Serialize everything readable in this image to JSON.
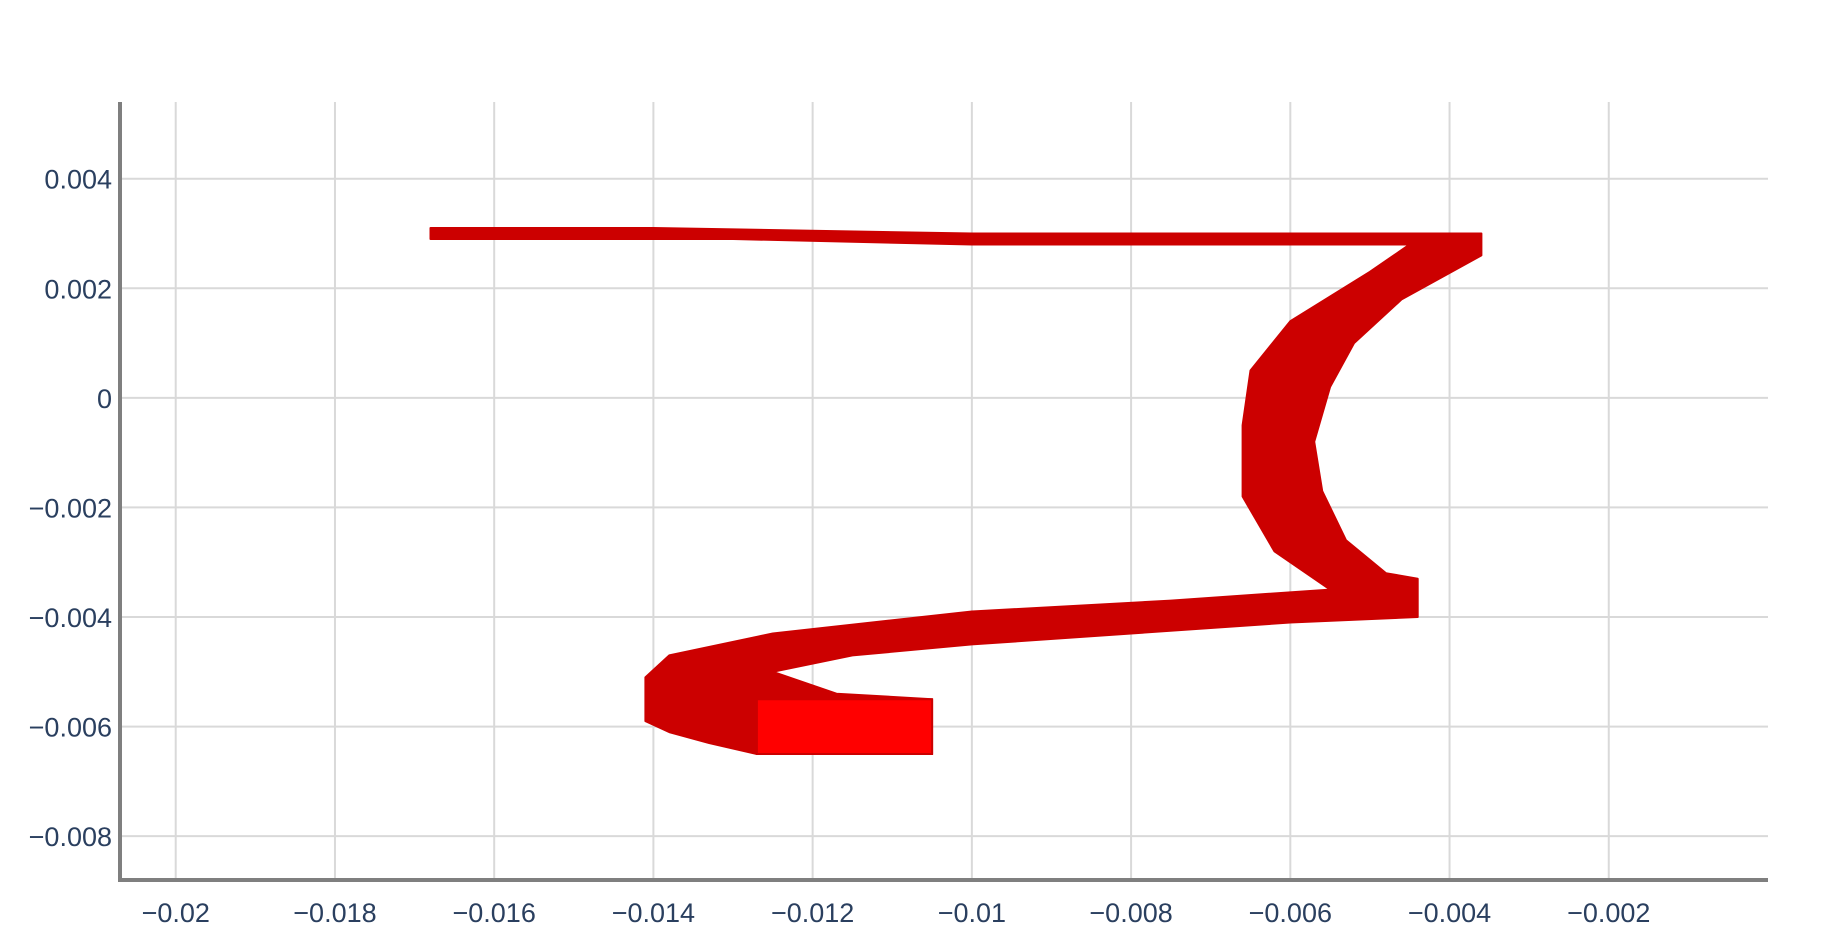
{
  "chart_data": {
    "type": "line",
    "title": "",
    "xlabel": "",
    "ylabel": "",
    "xlim": [
      -0.0207,
      0.0
    ],
    "ylim": [
      -0.0088,
      0.0054
    ],
    "x_ticks": [
      -0.02,
      -0.018,
      -0.016,
      -0.014,
      -0.012,
      -0.01,
      -0.008,
      -0.006,
      -0.004,
      -0.002
    ],
    "x_tick_labels": [
      "−0.02",
      "−0.018",
      "−0.016",
      "−0.014",
      "−0.012",
      "−0.01",
      "−0.008",
      "−0.006",
      "−0.004",
      "−0.002"
    ],
    "y_ticks": [
      0.004,
      0.002,
      0,
      -0.002,
      -0.004,
      -0.006,
      -0.008
    ],
    "y_tick_labels": [
      "0.004",
      "0.002",
      "0",
      "−0.002",
      "−0.004",
      "−0.006",
      "−0.008"
    ],
    "grid": true,
    "legend": "none",
    "series": [
      {
        "color": "#cc0000",
        "highlight_color": "#ff0000",
        "outer_edge": [
          [
            -0.0168,
            0.0031
          ],
          [
            -0.014,
            0.0031
          ],
          [
            -0.01,
            0.003
          ],
          [
            -0.007,
            0.003
          ],
          [
            -0.0052,
            0.003
          ],
          [
            -0.0036,
            0.003
          ],
          [
            -0.0036,
            0.0026
          ],
          [
            -0.0046,
            0.0018
          ],
          [
            -0.0052,
            0.001
          ],
          [
            -0.0055,
            0.0002
          ],
          [
            -0.0057,
            -0.0008
          ],
          [
            -0.0056,
            -0.0017
          ],
          [
            -0.0053,
            -0.0026
          ],
          [
            -0.0048,
            -0.0032
          ],
          [
            -0.0044,
            -0.0033
          ],
          [
            -0.0044,
            -0.004
          ],
          [
            -0.006,
            -0.0041
          ],
          [
            -0.008,
            -0.0043
          ],
          [
            -0.01,
            -0.0045
          ],
          [
            -0.0115,
            -0.0047
          ],
          [
            -0.0125,
            -0.005
          ],
          [
            -0.0117,
            -0.0054
          ],
          [
            -0.0105,
            -0.0055
          ],
          [
            -0.0105,
            -0.0065
          ],
          [
            -0.0127,
            -0.0065
          ],
          [
            -0.0133,
            -0.0063
          ],
          [
            -0.0138,
            -0.0061
          ],
          [
            -0.0141,
            -0.0059
          ],
          [
            -0.0141,
            -0.0051
          ],
          [
            -0.0138,
            -0.0047
          ],
          [
            -0.0125,
            -0.0043
          ],
          [
            -0.01,
            -0.0039
          ],
          [
            -0.0075,
            -0.0037
          ],
          [
            -0.0055,
            -0.0035
          ],
          [
            -0.0062,
            -0.0028
          ],
          [
            -0.0066,
            -0.0018
          ],
          [
            -0.0066,
            -0.0005
          ],
          [
            -0.0065,
            0.0005
          ],
          [
            -0.006,
            0.0014
          ],
          [
            -0.005,
            0.0023
          ],
          [
            -0.0045,
            0.0028
          ],
          [
            -0.007,
            0.0028
          ],
          [
            -0.01,
            0.0028
          ],
          [
            -0.013,
            0.0029
          ],
          [
            -0.0155,
            0.0029
          ],
          [
            -0.0168,
            0.0029
          ]
        ],
        "front_face": [
          [
            -0.0127,
            -0.0055
          ],
          [
            -0.0105,
            -0.0055
          ],
          [
            -0.0105,
            -0.0065
          ],
          [
            -0.0127,
            -0.0065
          ]
        ]
      }
    ]
  }
}
